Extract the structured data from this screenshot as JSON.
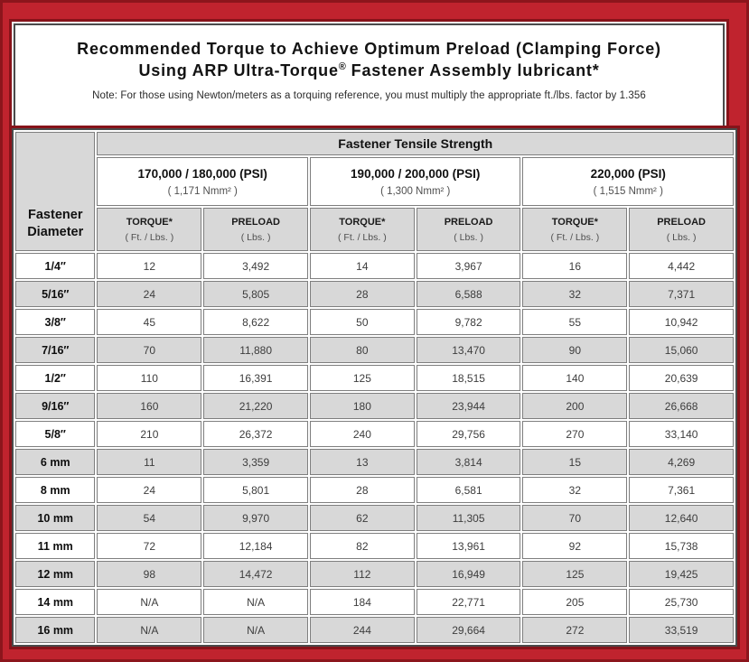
{
  "title": {
    "line1": "Recommended Torque to Achieve Optimum Preload (Clamping Force)",
    "line2_prefix": "Using ARP Ultra-Torque",
    "reg_mark": "®",
    "line2_suffix": " Fastener Assembly lubricant*",
    "note": "Note: For those using Newton/meters as a torquing reference, you must multiply the appropriate ft./lbs. factor by 1.356"
  },
  "table": {
    "corner_header": {
      "line1": "Fastener",
      "line2": "Diameter"
    },
    "group_header": "Fastener Tensile Strength",
    "strength_groups": [
      {
        "psi": "170,000 / 180,000 (PSI)",
        "nmm2": "( 1,171 Nmm² )"
      },
      {
        "psi": "190,000 / 200,000 (PSI)",
        "nmm2": "( 1,300 Nmm² )"
      },
      {
        "psi": "220,000 (PSI)",
        "nmm2": "( 1,515 Nmm² )"
      }
    ],
    "sub_headers": {
      "torque_label": "TORQUE*",
      "torque_unit": "( Ft. / Lbs. )",
      "preload_label": "PRELOAD",
      "preload_unit": "( Lbs. )"
    },
    "rows": [
      {
        "diameter": "1/4″",
        "shaded": false,
        "values": [
          "12",
          "3,492",
          "14",
          "3,967",
          "16",
          "4,442"
        ]
      },
      {
        "diameter": "5/16″",
        "shaded": true,
        "values": [
          "24",
          "5,805",
          "28",
          "6,588",
          "32",
          "7,371"
        ]
      },
      {
        "diameter": "3/8″",
        "shaded": false,
        "values": [
          "45",
          "8,622",
          "50",
          "9,782",
          "55",
          "10,942"
        ]
      },
      {
        "diameter": "7/16″",
        "shaded": true,
        "values": [
          "70",
          "11,880",
          "80",
          "13,470",
          "90",
          "15,060"
        ]
      },
      {
        "diameter": "1/2″",
        "shaded": false,
        "values": [
          "110",
          "16,391",
          "125",
          "18,515",
          "140",
          "20,639"
        ]
      },
      {
        "diameter": "9/16″",
        "shaded": true,
        "values": [
          "160",
          "21,220",
          "180",
          "23,944",
          "200",
          "26,668"
        ]
      },
      {
        "diameter": "5/8″",
        "shaded": false,
        "values": [
          "210",
          "26,372",
          "240",
          "29,756",
          "270",
          "33,140"
        ]
      },
      {
        "diameter": "6 mm",
        "shaded": true,
        "values": [
          "11",
          "3,359",
          "13",
          "3,814",
          "15",
          "4,269"
        ]
      },
      {
        "diameter": "8 mm",
        "shaded": false,
        "values": [
          "24",
          "5,801",
          "28",
          "6,581",
          "32",
          "7,361"
        ]
      },
      {
        "diameter": "10 mm",
        "shaded": true,
        "values": [
          "54",
          "9,970",
          "62",
          "11,305",
          "70",
          "12,640"
        ]
      },
      {
        "diameter": "11 mm",
        "shaded": false,
        "values": [
          "72",
          "12,184",
          "82",
          "13,961",
          "92",
          "15,738"
        ]
      },
      {
        "diameter": "12 mm",
        "shaded": true,
        "values": [
          "98",
          "14,472",
          "112",
          "16,949",
          "125",
          "19,425"
        ]
      },
      {
        "diameter": "14 mm",
        "shaded": false,
        "values": [
          "N/A",
          "N/A",
          "184",
          "22,771",
          "205",
          "25,730"
        ]
      },
      {
        "diameter": "16 mm",
        "shaded": true,
        "values": [
          "N/A",
          "N/A",
          "244",
          "29,664",
          "272",
          "33,519"
        ]
      }
    ]
  },
  "colors": {
    "frame_red": "#c0232e",
    "frame_red_dark": "#87131a",
    "shaded_cell": "#d8d8d8",
    "cell_border": "#7e7e7e",
    "table_border": "#4b4b4b"
  }
}
